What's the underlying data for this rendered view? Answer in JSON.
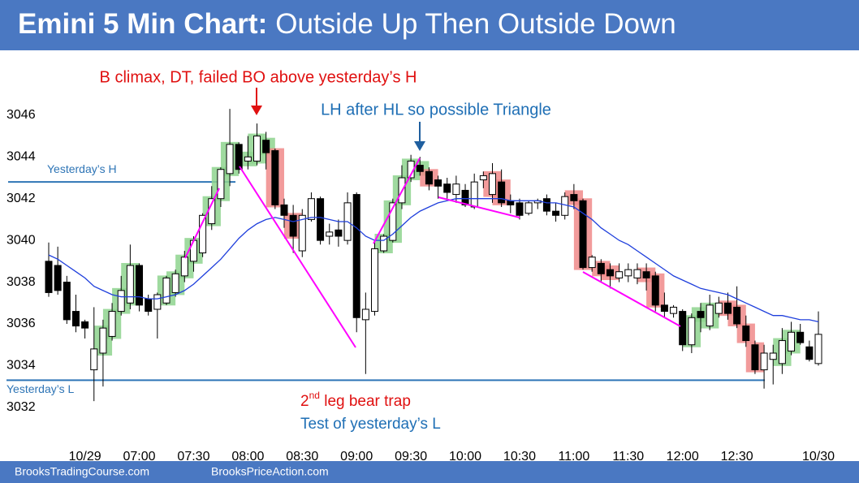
{
  "chart_data": {
    "type": "candlestick",
    "title_bold": "Emini 5 Min Chart:",
    "title": "Outside Up Then Outside Down",
    "footer": [
      "BrooksTradingCourse.com",
      "BrooksPriceAction.com"
    ],
    "annotations": {
      "climax": "B climax, DT, failed BO above yesterday’s H",
      "triangle": "LH after HL so possible Triangle",
      "bear_trap": [
        "2",
        "nd",
        " leg bear trap"
      ],
      "test": "Test of yesterday’s L"
    },
    "categories": [
      null,
      null,
      null,
      null,
      "10/29",
      null,
      null,
      null,
      null,
      null,
      "07:00",
      null,
      null,
      null,
      null,
      null,
      "07:30",
      null,
      null,
      null,
      null,
      null,
      "08:00",
      null,
      null,
      null,
      null,
      null,
      "08:30",
      null,
      null,
      null,
      null,
      null,
      "09:00",
      null,
      null,
      null,
      null,
      null,
      "09:30",
      null,
      null,
      null,
      null,
      null,
      "10:00",
      null,
      null,
      null,
      null,
      null,
      "10:30",
      null,
      null,
      null,
      null,
      null,
      "11:00",
      null,
      null,
      null,
      null,
      null,
      "11:30",
      null,
      null,
      null,
      null,
      null,
      "12:00",
      null,
      null,
      null,
      null,
      null,
      "12:30",
      null,
      null,
      null,
      null,
      null,
      null,
      null,
      null,
      "10/30"
    ],
    "open": [
      3039,
      3038.8,
      3038,
      3036.6,
      3036.1,
      3033.8,
      3034.6,
      3035.4,
      3036.6,
      3037,
      3038.8,
      3037.2,
      3036.7,
      3037,
      3037.5,
      3038.3,
      3039,
      3039.4,
      3040.8,
      3042,
      3043.2,
      3044.6,
      3043.8,
      3043.8,
      3044.8,
      3044.3,
      3041.7,
      3041.2,
      3039.5,
      3041,
      3042,
      3040.2,
      3040.5,
      3040,
      3042.2,
      3036.2,
      3036.6,
      3039.5,
      3040,
      3041.8,
      3043,
      3043.6,
      3043.3,
      3042.9,
      3042.7,
      3042.2,
      3042.4,
      3041.6,
      3042.9,
      3042.2,
      3042.8,
      3041.9,
      3041.8,
      3041.3,
      3041.8,
      3042,
      3041.4,
      3041.2,
      3042.2,
      3041.9,
      3038.7,
      3038.9,
      3038.6,
      3038.2,
      3038.3,
      3038.2,
      3038.5,
      3038.3,
      3036.9,
      3036.5,
      3036.6,
      3035,
      3036.6,
      3035.9,
      3036.5,
      3037,
      3036.8,
      3035.9,
      3035,
      3033.8,
      3034.3,
      3034.1,
      3034.7,
      3035.6,
      3034.9,
      3034.1
    ],
    "high": [
      3039.9,
      3039.7,
      3038.3,
      3037.4,
      3036.2,
      3036.8,
      3036.2,
      3037,
      3038.3,
      3039.8,
      3038.9,
      3037.4,
      3037.5,
      3038.3,
      3038.6,
      3039.5,
      3040.2,
      3041.3,
      3042.6,
      3043.5,
      3046.3,
      3044.7,
      3045,
      3045.6,
      3045.2,
      3044.4,
      3042,
      3041.7,
      3041.5,
      3042.3,
      3042.1,
      3040.8,
      3041,
      3042.3,
      3042.3,
      3037.5,
      3039.9,
      3040.3,
      3042,
      3043.6,
      3044.1,
      3044,
      3043.5,
      3043.1,
      3043,
      3043.1,
      3042.7,
      3043.2,
      3043.3,
      3043.7,
      3043.4,
      3042.2,
      3042,
      3041.9,
      3042,
      3042.2,
      3041.8,
      3042.3,
      3042.7,
      3042,
      3039.3,
      3039.1,
      3038.9,
      3038.9,
      3038.9,
      3038.9,
      3038.9,
      3038.5,
      3037.5,
      3036.9,
      3036.7,
      3036.5,
      3037,
      3037.4,
      3037.3,
      3037.5,
      3037.8,
      3036.4,
      3035.2,
      3035,
      3035,
      3035.8,
      3036.1,
      3036,
      3035.2,
      3036.6
    ],
    "low": [
      3037.3,
      3037.4,
      3036,
      3035.6,
      3035.3,
      3032.3,
      3033,
      3035.2,
      3036.4,
      3036.7,
      3036.6,
      3036.4,
      3035.3,
      3036.9,
      3037.3,
      3038,
      3038.5,
      3039.2,
      3040.5,
      3041.6,
      3042.6,
      3043.2,
      3043.4,
      3043.6,
      3043.4,
      3041.5,
      3040.6,
      3039.4,
      3039.2,
      3040.9,
      3039.8,
      3039.8,
      3039.7,
      3039.8,
      3035.6,
      3033.6,
      3036.4,
      3039.4,
      3039.9,
      3041.5,
      3042.8,
      3043.1,
      3042.4,
      3042,
      3042,
      3041.8,
      3041.6,
      3041.5,
      3042.5,
      3041.8,
      3041.6,
      3041.3,
      3041,
      3041.2,
      3041.5,
      3041.2,
      3040.9,
      3041,
      3041.5,
      3038.6,
      3038.5,
      3038,
      3037.7,
      3038,
      3038,
      3037.9,
      3037.6,
      3036.6,
      3036.3,
      3036.3,
      3034.7,
      3034.6,
      3035.6,
      3035.7,
      3036.3,
      3036.2,
      3035.8,
      3034.9,
      3033.6,
      3032.9,
      3033.1,
      3033.6,
      3034.5,
      3035,
      3034.2,
      3034
    ],
    "close": [
      3037.5,
      3037.6,
      3036.2,
      3035.9,
      3035.8,
      3034.8,
      3035.8,
      3036.6,
      3037.6,
      3038.8,
      3036.9,
      3036.6,
      3037.4,
      3038.2,
      3038.4,
      3039.2,
      3040,
      3041.2,
      3042,
      3043.4,
      3044.6,
      3043.4,
      3044,
      3045,
      3044.2,
      3041.7,
      3041.2,
      3040.2,
      3041.2,
      3042,
      3040,
      3040.4,
      3040.2,
      3041.8,
      3036.3,
      3036.7,
      3039.6,
      3040.2,
      3041.8,
      3043,
      3043.8,
      3043.3,
      3042.7,
      3042.6,
      3042.3,
      3042.7,
      3041.7,
      3042.8,
      3043.1,
      3043.2,
      3041.8,
      3041.7,
      3041.2,
      3041.8,
      3041.9,
      3041.4,
      3041.2,
      3042.1,
      3041.9,
      3038.7,
      3039.2,
      3038.4,
      3038.3,
      3038.5,
      3038.6,
      3038.6,
      3038.2,
      3036.9,
      3036.6,
      3036.8,
      3035,
      3036.3,
      3036.3,
      3036.9,
      3037,
      3036.5,
      3036,
      3035.2,
      3033.8,
      3034.6,
      3034.6,
      3035.2,
      3035.6,
      3035.1,
      3034.3,
      3035.5
    ],
    "highlight_colors": [
      null,
      null,
      null,
      null,
      null,
      null,
      "#8ed48e",
      "#8ed48e",
      "#8ed48e",
      "#8ed48e",
      null,
      null,
      null,
      "#8ed48e",
      "#8ed48e",
      "#8ed48e",
      "#8ed48e",
      null,
      "#8ed48e",
      "#8ed48e",
      "#8ed48e",
      null,
      "#8ed48e",
      "#8ed48e",
      "#8ed48e",
      "#f08a8a",
      null,
      "#f08a8a",
      null,
      null,
      null,
      null,
      null,
      null,
      null,
      null,
      null,
      "#8ed48e",
      "#8ed48e",
      "#8ed48e",
      "#8ed48e",
      "#8ed48e",
      "#f08a8a",
      null,
      null,
      null,
      null,
      null,
      null,
      "#f08a8a",
      "#f08a8a",
      null,
      null,
      null,
      null,
      null,
      null,
      null,
      "#f08a8a",
      "#f08a8a",
      null,
      "#f08a8a",
      "#f08a8a",
      null,
      null,
      null,
      "#f08a8a",
      "#f08a8a",
      null,
      null,
      null,
      "#8ed48e",
      "#8ed48e",
      "#8ed48e",
      null,
      "#f08a8a",
      "#f08a8a",
      "#f08a8a",
      "#f08a8a",
      null,
      null,
      "#8ed48e",
      "#8ed48e",
      null,
      null,
      null
    ],
    "ma": {
      "color": "#1f3fdc",
      "values": [
        3039.3,
        3039.1,
        3038.8,
        3038.5,
        3038.2,
        3037.8,
        3037.6,
        3037.4,
        3037.3,
        3037.3,
        3037.3,
        3037.2,
        3037.2,
        3037.3,
        3037.4,
        3037.6,
        3037.9,
        3038.3,
        3038.7,
        3039.1,
        3039.6,
        3040.1,
        3040.5,
        3040.8,
        3041,
        3041.1,
        3041,
        3040.9,
        3041,
        3041.1,
        3041.1,
        3041,
        3040.9,
        3040.9,
        3040.6,
        3040.2,
        3040,
        3040,
        3040.3,
        3040.7,
        3041.1,
        3041.4,
        3041.6,
        3041.8,
        3041.9,
        3042,
        3042,
        3042,
        3042,
        3042,
        3042,
        3041.9,
        3041.9,
        3041.9,
        3041.9,
        3041.8,
        3041.8,
        3041.7,
        3041.6,
        3041.3,
        3041,
        3040.6,
        3040.3,
        3040,
        3039.8,
        3039.5,
        3039.2,
        3038.9,
        3038.6,
        3038.3,
        3038.1,
        3037.9,
        3037.7,
        3037.6,
        3037.5,
        3037.4,
        3037.2,
        3037,
        3036.8,
        3036.6,
        3036.4,
        3036.4,
        3036.3,
        3036.2,
        3036.2,
        3036.1
      ]
    },
    "reference_lines": [
      {
        "label": "Yesterday’s H",
        "value": 3042.8,
        "color": "#2e75b6"
      },
      {
        "label": "Yesterday’s L",
        "value": 3033.3,
        "color": "#2e75b6"
      }
    ],
    "ylim": [
      3030.4,
      3048.6
    ],
    "yticks": [
      3032,
      3034,
      3036,
      3038,
      3040,
      3042,
      3044,
      3046
    ]
  }
}
